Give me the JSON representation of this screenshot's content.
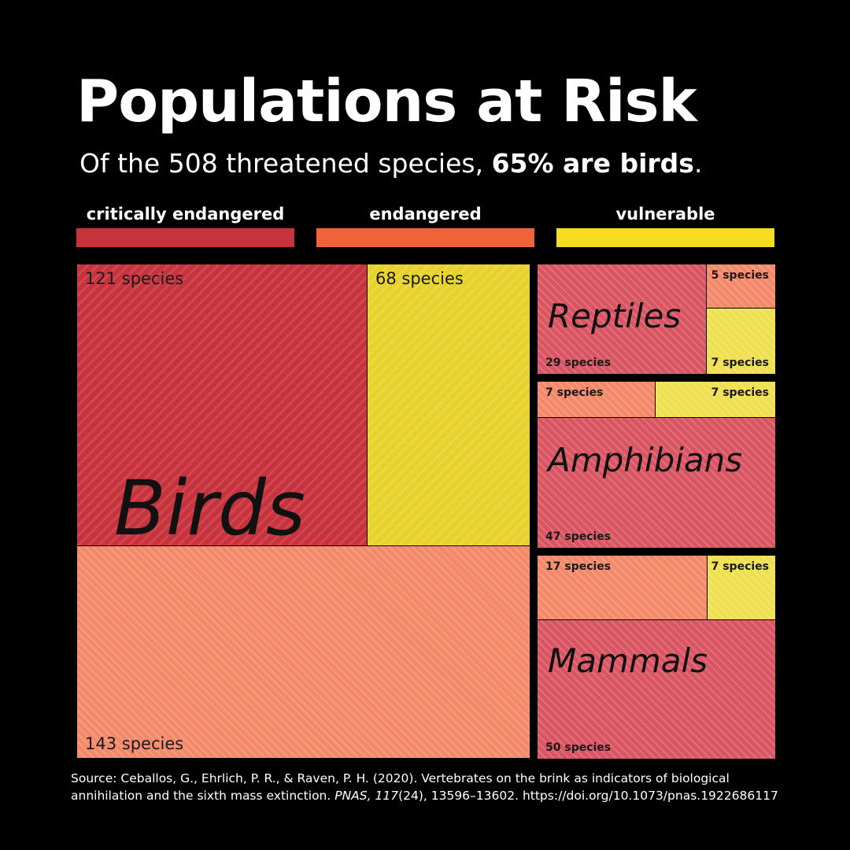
{
  "title": "Populations at Risk",
  "subtitle": {
    "prefix": "Of the 508 threatened species, ",
    "highlight": "65% are birds",
    "suffix": "."
  },
  "colors": {
    "critically_endangered": "#c7333d",
    "endangered": "#f0623a",
    "vulnerable": "#f5dc1e"
  },
  "legend": [
    {
      "label": "critically endangered",
      "color": "#c7333d"
    },
    {
      "label": "endangered",
      "color": "#f0623a"
    },
    {
      "label": "vulnerable",
      "color": "#f5dc1e"
    }
  ],
  "chart_data": {
    "type": "treemap",
    "categories": [
      "critically endangered",
      "endangered",
      "vulnerable"
    ],
    "groups": [
      {
        "name": "Birds",
        "cells": [
          {
            "status": "critically endangered",
            "value": 121,
            "label": "121 species"
          },
          {
            "status": "vulnerable",
            "value": 68,
            "label": "68 species"
          },
          {
            "status": "endangered",
            "value": 143,
            "label": "143 species"
          }
        ]
      },
      {
        "name": "Reptiles",
        "cells": [
          {
            "status": "critically endangered",
            "value": 29,
            "label": "29 species"
          },
          {
            "status": "endangered",
            "value": 5,
            "label": "5 species"
          },
          {
            "status": "vulnerable",
            "value": 7,
            "label": "7 species"
          }
        ]
      },
      {
        "name": "Amphibians",
        "cells": [
          {
            "status": "endangered",
            "value": 7,
            "label": "7 species"
          },
          {
            "status": "vulnerable",
            "value": 7,
            "label": "7 species"
          },
          {
            "status": "critically endangered",
            "value": 47,
            "label": "47 species"
          }
        ]
      },
      {
        "name": "Mammals",
        "cells": [
          {
            "status": "endangered",
            "value": 17,
            "label": "17 species"
          },
          {
            "status": "vulnerable",
            "value": 7,
            "label": "7 species"
          },
          {
            "status": "critically endangered",
            "value": 50,
            "label": "50 species"
          }
        ]
      }
    ]
  },
  "source": {
    "before_journal": "Source: Ceballos, G., Ehrlich, P. R., & Raven, P. H. (2020). Vertebrates on the brink as indicators of biological annihilation and the sixth mass extinction. ",
    "journal": "PNAS, 117",
    "after_journal": "(24), 13596–13602. https://doi.org/10.1073/pnas.1922686117"
  }
}
